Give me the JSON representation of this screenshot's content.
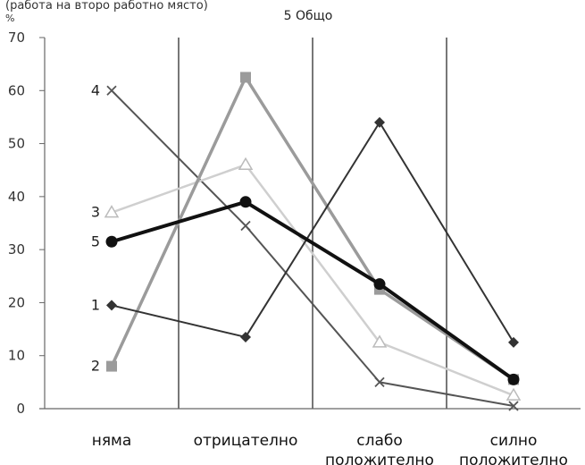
{
  "caption": "(работа на второ работно място)",
  "chart_data": {
    "type": "line",
    "ylabel": "%",
    "ylim": [
      0,
      70
    ],
    "yticks": [
      "0",
      "10",
      "20",
      "30",
      "40",
      "50",
      "60",
      "70"
    ],
    "categories": [
      [
        "няма"
      ],
      [
        "отрицателно"
      ],
      [
        "слабо",
        "положително"
      ],
      [
        "силно",
        "положително"
      ]
    ],
    "legend_label": "5 Общо",
    "series": [
      {
        "name": "1",
        "values": [
          19.5,
          13.5,
          54,
          12.5
        ],
        "color": "#333333",
        "marker": "diamond",
        "width": 2
      },
      {
        "name": "2",
        "values": [
          8,
          62.5,
          22.5,
          5.5
        ],
        "color": "#9b9b9b",
        "marker": "square",
        "width": 3.5
      },
      {
        "name": "3",
        "values": [
          37,
          46,
          12.5,
          2.5
        ],
        "color": "#cfcfcf",
        "marker": "triangle",
        "width": 2.5
      },
      {
        "name": "4",
        "values": [
          60,
          34.5,
          5,
          0.5
        ],
        "color": "#555555",
        "marker": "x",
        "width": 2
      },
      {
        "name": "5",
        "values": [
          31.5,
          39,
          23.5,
          5.5
        ],
        "color": "#111111",
        "marker": "circle",
        "width": 4
      }
    ]
  }
}
